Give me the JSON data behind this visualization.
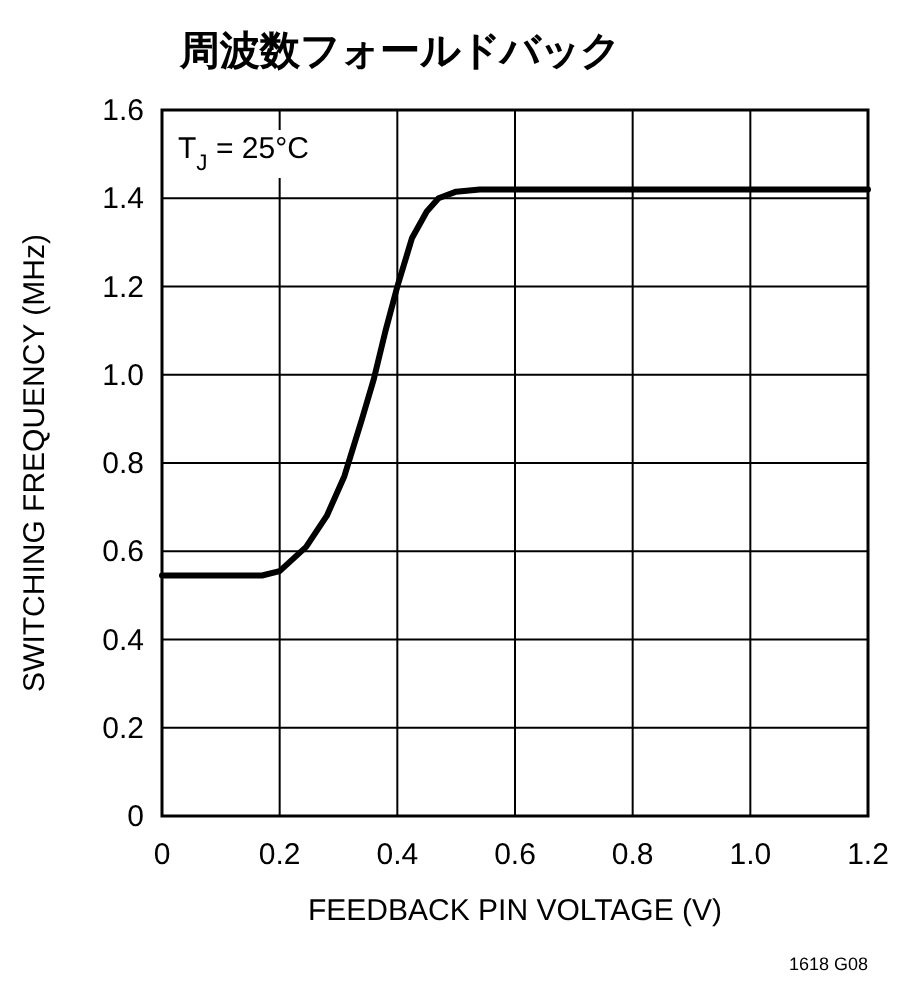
{
  "chart_data": {
    "type": "line",
    "title": "周波数フォールドバック",
    "xlabel": "FEEDBACK PIN VOLTAGE (V)",
    "ylabel": "SWITCHING FREQUENCY (MHz)",
    "annotations": [
      "T$_{J}$ = 25°C",
      "1618 G08"
    ],
    "x": [
      0,
      0.17,
      0.2,
      0.245,
      0.28,
      0.31,
      0.34,
      0.36,
      0.38,
      0.4,
      0.425,
      0.45,
      0.47,
      0.5,
      0.54,
      1.2
    ],
    "series": [
      {
        "color": "#000000",
        "values": [
          0.545,
          0.545,
          0.555,
          0.61,
          0.68,
          0.77,
          0.9,
          0.99,
          1.1,
          1.2,
          1.31,
          1.37,
          1.4,
          1.415,
          1.42,
          1.42
        ]
      }
    ],
    "xlim": [
      0,
      1.2
    ],
    "ylim": [
      0,
      1.6
    ],
    "xticks": [
      {
        "value": 0,
        "label": "0"
      },
      {
        "value": 0.2,
        "label": "0.2"
      },
      {
        "value": 0.4,
        "label": "0.4"
      },
      {
        "value": 0.6,
        "label": "0.6"
      },
      {
        "value": 0.8,
        "label": "0.8"
      },
      {
        "value": 1.0,
        "label": "1.0"
      },
      {
        "value": 1.2,
        "label": "1.2"
      }
    ],
    "yticks": [
      {
        "value": 0,
        "label": "0"
      },
      {
        "value": 0.2,
        "label": "0.2"
      },
      {
        "value": 0.4,
        "label": "0.4"
      },
      {
        "value": 0.6,
        "label": "0.6"
      },
      {
        "value": 0.8,
        "label": "0.8"
      },
      {
        "value": 1.0,
        "label": "1.0"
      },
      {
        "value": 1.2,
        "label": "1.2"
      },
      {
        "value": 1.4,
        "label": "1.4"
      },
      {
        "value": 1.6,
        "label": "1.6"
      }
    ],
    "grid": true,
    "marker": "none",
    "line_style": "solid"
  }
}
